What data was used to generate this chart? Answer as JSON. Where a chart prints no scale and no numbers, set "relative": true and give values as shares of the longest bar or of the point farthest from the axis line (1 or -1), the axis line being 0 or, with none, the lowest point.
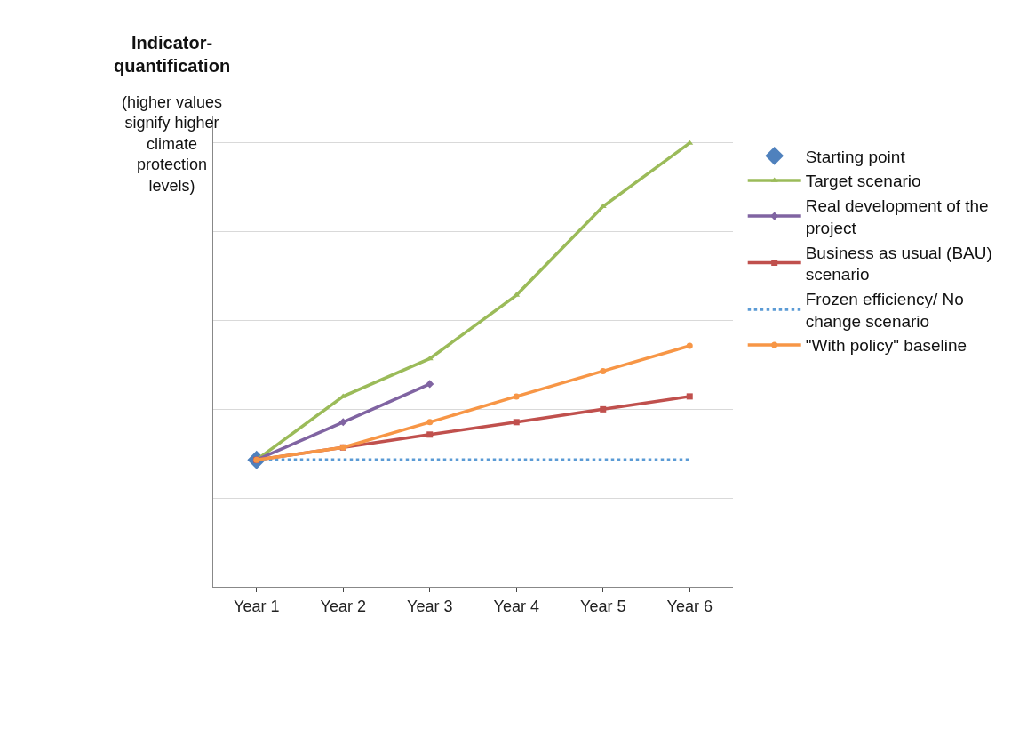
{
  "chart_data": {
    "type": "line",
    "relative": true,
    "ylabel": "Indicator-quantification",
    "annotations": [
      "(higher values signify higher climate protection levels)"
    ],
    "categories": [
      "Year 1",
      "Year 2",
      "Year 3",
      "Year 4",
      "Year 5",
      "Year 6"
    ],
    "grid": "y",
    "legend": "right",
    "series": [
      {
        "name": "Starting point",
        "type": "scatter",
        "color": "#4f81bd",
        "marker": "diamond",
        "values": [
          0.286,
          null,
          null,
          null,
          null,
          null
        ]
      },
      {
        "name": "Target scenario",
        "color": "#9bbb59",
        "marker": "triangle",
        "values": [
          0.286,
          0.429,
          0.514,
          0.657,
          0.857,
          1
        ]
      },
      {
        "name": "Real development of the project",
        "color": "#8064a2",
        "marker": "diamond",
        "values": [
          0.286,
          0.371,
          0.457,
          null,
          null,
          null
        ]
      },
      {
        "name": "Business as usual (BAU) scenario",
        "color": "#c0504d",
        "marker": "square",
        "values": [
          0.286,
          0.314,
          0.343,
          0.371,
          0.4,
          0.429
        ]
      },
      {
        "name": "Frozen efficiency/ No change scenario",
        "color": "#5b9bd5",
        "marker": "none",
        "line_style": "dotted",
        "values": [
          0.286,
          0.286,
          0.286,
          0.286,
          0.286,
          0.286
        ]
      },
      {
        "name": "\"With policy\" baseline",
        "color": "#f79646",
        "marker": "circle",
        "values": [
          0.286,
          0.314,
          0.371,
          0.429,
          0.486,
          0.543
        ]
      }
    ]
  }
}
